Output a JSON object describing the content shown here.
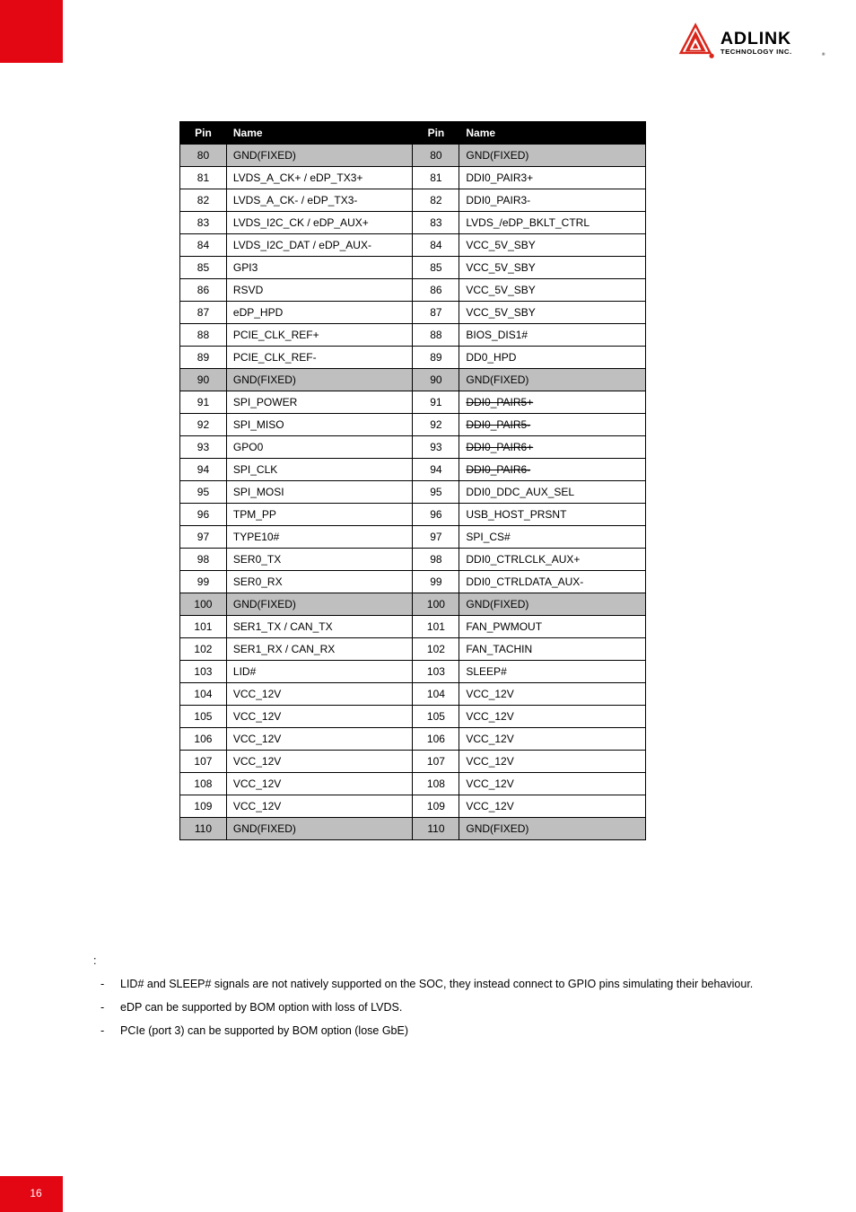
{
  "logo": {
    "brand": "ADLINK",
    "subtitle": "TECHNOLOGY INC.",
    "triangle_color": "#d9261c",
    "ball_color": "#d9261c",
    "text_color": "#000000"
  },
  "accent_color": "#e30613",
  "table": {
    "headers": [
      "Pin",
      "Name",
      "Pin",
      "Name"
    ],
    "rows": [
      {
        "p1": "80",
        "n1": "GND(FIXED)",
        "p2": "80",
        "n2": "GND(FIXED)",
        "gnd": true
      },
      {
        "p1": "81",
        "n1": "LVDS_A_CK+ / eDP_TX3+",
        "p2": "81",
        "n2": "DDI0_PAIR3+"
      },
      {
        "p1": "82",
        "n1": "LVDS_A_CK- / eDP_TX3-",
        "p2": "82",
        "n2": "DDI0_PAIR3-"
      },
      {
        "p1": "83",
        "n1": "LVDS_I2C_CK / eDP_AUX+",
        "p2": "83",
        "n2": "LVDS_/eDP_BKLT_CTRL"
      },
      {
        "p1": "84",
        "n1": "LVDS_I2C_DAT / eDP_AUX-",
        "p2": "84",
        "n2": "VCC_5V_SBY"
      },
      {
        "p1": "85",
        "n1": "GPI3",
        "p2": "85",
        "n2": "VCC_5V_SBY"
      },
      {
        "p1": "86",
        "n1": "RSVD",
        "p2": "86",
        "n2": "VCC_5V_SBY"
      },
      {
        "p1": "87",
        "n1": "eDP_HPD",
        "p2": "87",
        "n2": "VCC_5V_SBY"
      },
      {
        "p1": "88",
        "n1": "PCIE_CLK_REF+",
        "p2": "88",
        "n2": "BIOS_DIS1#"
      },
      {
        "p1": "89",
        "n1": "PCIE_CLK_REF-",
        "p2": "89",
        "n2": "DD0_HPD"
      },
      {
        "p1": "90",
        "n1": "GND(FIXED)",
        "p2": "90",
        "n2": "GND(FIXED)",
        "gnd": true
      },
      {
        "p1": "91",
        "n1": "SPI_POWER",
        "p2": "91",
        "n2": "DDI0_PAIR5+",
        "n2strike": true
      },
      {
        "p1": "92",
        "n1": "SPI_MISO",
        "p2": "92",
        "n2": "DDI0_PAIR5-",
        "n2strike": true
      },
      {
        "p1": "93",
        "n1": "GPO0",
        "p2": "93",
        "n2": "DDI0_PAIR6+",
        "n2strike": true
      },
      {
        "p1": "94",
        "n1": "SPI_CLK",
        "p2": "94",
        "n2": "DDI0_PAIR6-",
        "n2strike": true
      },
      {
        "p1": "95",
        "n1": "SPI_MOSI",
        "p2": "95",
        "n2": "DDI0_DDC_AUX_SEL"
      },
      {
        "p1": "96",
        "n1": "TPM_PP",
        "p2": "96",
        "n2": "USB_HOST_PRSNT"
      },
      {
        "p1": "97",
        "n1": "TYPE10#",
        "p2": "97",
        "n2": "SPI_CS#"
      },
      {
        "p1": "98",
        "n1": "SER0_TX",
        "p2": "98",
        "n2": "DDI0_CTRLCLK_AUX+"
      },
      {
        "p1": "99",
        "n1": "SER0_RX",
        "p2": "99",
        "n2": "DDI0_CTRLDATA_AUX-"
      },
      {
        "p1": "100",
        "n1": "GND(FIXED)",
        "p2": "100",
        "n2": "GND(FIXED)",
        "gnd": true
      },
      {
        "p1": "101",
        "n1": "SER1_TX / CAN_TX",
        "p2": "101",
        "n2": "FAN_PWMOUT"
      },
      {
        "p1": "102",
        "n1": "SER1_RX / CAN_RX",
        "p2": "102",
        "n2": "FAN_TACHIN"
      },
      {
        "p1": "103",
        "n1": "LID#",
        "p2": "103",
        "n2": "SLEEP#"
      },
      {
        "p1": "104",
        "n1": "VCC_12V",
        "p2": "104",
        "n2": "VCC_12V"
      },
      {
        "p1": "105",
        "n1": "VCC_12V",
        "p2": "105",
        "n2": "VCC_12V"
      },
      {
        "p1": "106",
        "n1": "VCC_12V",
        "p2": "106",
        "n2": "VCC_12V"
      },
      {
        "p1": "107",
        "n1": "VCC_12V",
        "p2": "107",
        "n2": "VCC_12V"
      },
      {
        "p1": "108",
        "n1": "VCC_12V",
        "p2": "108",
        "n2": "VCC_12V"
      },
      {
        "p1": "109",
        "n1": "VCC_12V",
        "p2": "109",
        "n2": "VCC_12V"
      },
      {
        "p1": "110",
        "n1": "GND(FIXED)",
        "p2": "110",
        "n2": "GND(FIXED)",
        "gnd": true
      }
    ]
  },
  "notes": {
    "lead": ":",
    "items": [
      "LID# and SLEEP# signals are not natively supported on the SOC, they instead connect to GPIO pins simulating their behaviour.",
      "eDP can be supported by BOM option with loss of LVDS.",
      "PCIe (port 3) can be supported by BOM option (lose GbE)"
    ]
  },
  "page_number": "16"
}
